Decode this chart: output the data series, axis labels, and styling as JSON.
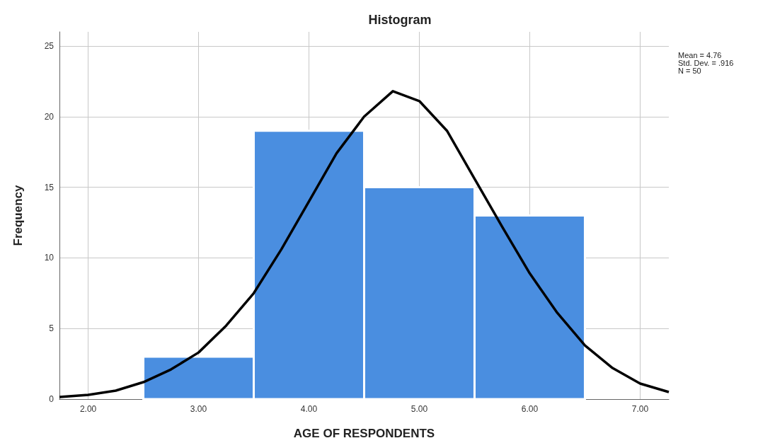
{
  "chart_data": {
    "type": "histogram",
    "title": "Histogram",
    "xlabel": "AGE OF RESPONDENTS",
    "ylabel": "Frequency",
    "bins": [
      2.5,
      3.5,
      4.5,
      5.5,
      6.5
    ],
    "values": [
      3,
      19,
      15,
      13
    ],
    "color": "#4a8ee0",
    "series": [
      {
        "type": "line",
        "color": "#000000",
        "x": [
          1.74,
          2.0,
          2.25,
          2.5,
          2.75,
          3.0,
          3.25,
          3.5,
          3.75,
          4.0,
          4.25,
          4.5,
          4.76,
          5.0,
          5.25,
          5.5,
          5.75,
          6.0,
          6.25,
          6.5,
          6.75,
          7.0,
          7.26
        ],
        "values": [
          0.15,
          0.3,
          0.6,
          1.2,
          2.1,
          3.3,
          5.2,
          7.5,
          10.6,
          14.0,
          17.4,
          20.0,
          21.8,
          21.1,
          19.0,
          15.6,
          12.2,
          8.9,
          6.1,
          3.8,
          2.2,
          1.1,
          0.5
        ]
      }
    ],
    "xlim": [
      1.74,
      7.26
    ],
    "xticks": [
      {
        "value": 2,
        "label": "2.00"
      },
      {
        "value": 3,
        "label": "3.00"
      },
      {
        "value": 4,
        "label": "4.00"
      },
      {
        "value": 5,
        "label": "5.00"
      },
      {
        "value": 6,
        "label": "6.00"
      },
      {
        "value": 7,
        "label": "7.00"
      }
    ],
    "ylim": [
      0,
      26
    ],
    "yticks": [
      0,
      5,
      10,
      15,
      20,
      25
    ],
    "grid": true,
    "marker": "none",
    "line_style": "solid",
    "annotations": [
      "Mean = 4.76",
      "Std. Dev. = .916",
      "N = 50"
    ]
  }
}
